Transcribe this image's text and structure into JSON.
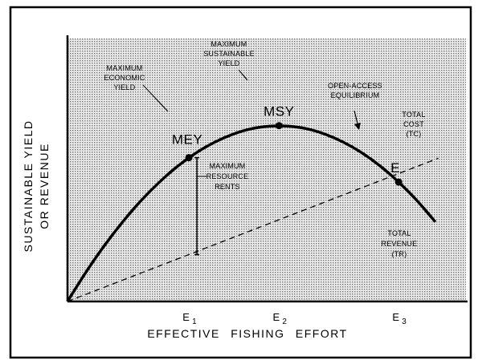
{
  "chart_data": {
    "type": "line",
    "title": "",
    "xlabel": "EFFECTIVE FISHING EFFORT",
    "ylabel_line1": "SUSTAINABLE YIELD",
    "ylabel_line2": "OR REVENUE",
    "xlim": [
      0,
      10
    ],
    "ylim": [
      0,
      10
    ],
    "grid": false,
    "series": [
      {
        "name": "Total Revenue (TR)",
        "label_lines": [
          "TOTAL",
          "REVENUE",
          "(TR)"
        ],
        "style": "solid",
        "x": [
          0,
          0.5,
          1,
          1.5,
          2,
          2.5,
          3,
          3.5,
          4,
          4.5,
          5,
          5.5,
          6,
          6.5,
          7,
          7.5,
          8,
          8.5,
          9,
          9.5,
          10
        ],
        "y": [
          0,
          1.6,
          3.06,
          4.37,
          5.54,
          6.56,
          7.44,
          8.17,
          8.75,
          9.19,
          9.49,
          9.63,
          9.63,
          9.49,
          9.19,
          8.75,
          8.17,
          7.44,
          6.56,
          5.54,
          4.37
        ]
      },
      {
        "name": "Total Cost (TC)",
        "label_lines": [
          "TOTAL",
          "COST",
          "(TC)"
        ],
        "style": "dashed",
        "x": [
          0,
          10.08
        ],
        "y": [
          0,
          7.87
        ]
      }
    ],
    "points": [
      {
        "id": "MEY",
        "label": "MEY",
        "x": 3.3,
        "y": 7.9,
        "tick": "E",
        "sub": "1",
        "annotation_lines": [
          "MAXIMUM",
          "ECONOMIC",
          "YIELD"
        ]
      },
      {
        "id": "MSY",
        "label": "MSY",
        "x": 5.75,
        "y": 9.66,
        "tick": "E",
        "sub": "2",
        "annotation_lines": [
          "MAXIMUM",
          "SUSTAINABLE",
          "YIELD"
        ]
      },
      {
        "id": "OAE",
        "label": "E",
        "x": 9.0,
        "y": 6.56,
        "tick": "E",
        "sub": "3",
        "annotation_lines": [
          "OPEN-ACCESS",
          "EQUILIBRIUM"
        ]
      }
    ],
    "rent_bracket": {
      "x": 3.3,
      "y_top": 7.9,
      "y_bottom": 2.57,
      "label_lines": [
        "MAXIMUM",
        "RESOURCE",
        "RENTS"
      ]
    }
  }
}
